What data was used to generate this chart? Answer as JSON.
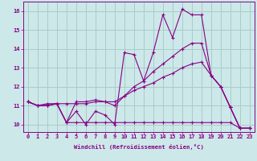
{
  "xlabel": "Windchill (Refroidissement éolien,°C)",
  "background_color": "#cce8e8",
  "grid_color": "#aacccc",
  "line_color": "#880088",
  "x_ticks": [
    0,
    1,
    2,
    3,
    4,
    5,
    6,
    7,
    8,
    9,
    10,
    11,
    12,
    13,
    14,
    15,
    16,
    17,
    18,
    19,
    20,
    21,
    22,
    23
  ],
  "y_ticks": [
    10,
    11,
    12,
    13,
    14,
    15,
    16
  ],
  "ylim": [
    9.6,
    16.5
  ],
  "xlim": [
    -0.5,
    23.5
  ],
  "series": [
    [
      11.2,
      11.0,
      11.0,
      11.1,
      10.1,
      10.7,
      10.0,
      10.7,
      10.5,
      10.0,
      13.8,
      13.7,
      12.3,
      13.8,
      15.8,
      14.6,
      16.1,
      15.8,
      15.8,
      12.6,
      12.0,
      10.9,
      9.8,
      9.8
    ],
    [
      11.2,
      11.0,
      11.1,
      11.1,
      10.1,
      11.2,
      11.2,
      11.3,
      11.2,
      11.0,
      11.5,
      12.0,
      12.3,
      12.8,
      13.2,
      13.6,
      14.0,
      14.3,
      14.3,
      12.6,
      12.0,
      10.9,
      9.8,
      9.8
    ],
    [
      11.2,
      11.0,
      11.0,
      11.1,
      11.1,
      11.1,
      11.1,
      11.2,
      11.2,
      11.2,
      11.5,
      11.8,
      12.0,
      12.2,
      12.5,
      12.7,
      13.0,
      13.2,
      13.3,
      12.6,
      12.0,
      10.9,
      9.8,
      9.8
    ],
    [
      11.2,
      11.0,
      11.0,
      11.1,
      10.1,
      10.1,
      10.1,
      10.1,
      10.1,
      10.1,
      10.1,
      10.1,
      10.1,
      10.1,
      10.1,
      10.1,
      10.1,
      10.1,
      10.1,
      10.1,
      10.1,
      10.1,
      9.8,
      9.8
    ]
  ],
  "marker": "+",
  "markersize": 3,
  "linewidth": 0.8,
  "tick_fontsize": 5.0,
  "xlabel_fontsize": 5.2
}
